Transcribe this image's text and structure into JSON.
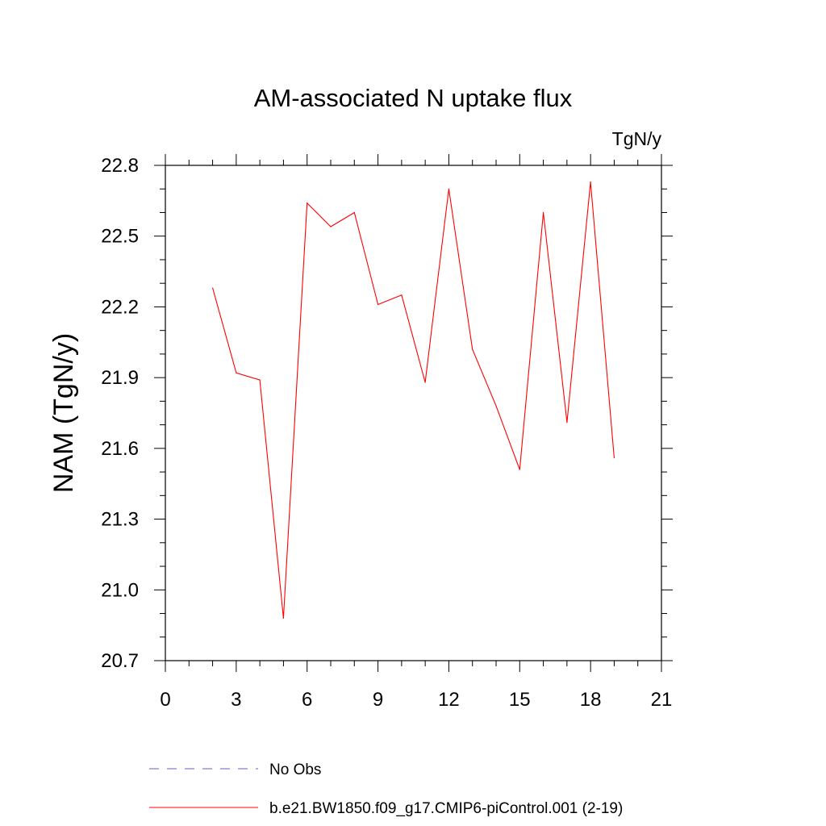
{
  "chart_data": {
    "type": "line",
    "title": "AM-associated N uptake flux",
    "units": "TgN/y",
    "xlabel": "",
    "ylabel": "NAM  (TgN/y)",
    "xlim": [
      0,
      21
    ],
    "ylim": [
      20.7,
      22.8
    ],
    "xticks": [
      "0",
      "3",
      "6",
      "9",
      "12",
      "15",
      "18",
      "21"
    ],
    "yticks": [
      "20.7",
      "21.0",
      "21.3",
      "21.6",
      "21.9",
      "22.2",
      "22.5",
      "22.8"
    ],
    "series": [
      {
        "name": "b.e21.BW1850.f09_g17.CMIP6-piControl.001 (2-19)",
        "color": "#ff0000",
        "x": [
          2,
          3,
          4,
          5,
          6,
          7,
          8,
          9,
          10,
          11,
          12,
          13,
          14,
          15,
          16,
          17,
          18,
          19
        ],
        "values": [
          22.28,
          21.92,
          21.89,
          20.88,
          22.64,
          22.54,
          22.6,
          22.21,
          22.25,
          21.88,
          22.7,
          22.02,
          21.78,
          21.51,
          22.6,
          21.71,
          22.73,
          21.56
        ]
      }
    ],
    "legend": [
      {
        "label": "No Obs",
        "color": "#6a5acd",
        "style": "dashed"
      },
      {
        "label": "b.e21.BW1850.f09_g17.CMIP6-piControl.001 (2-19)",
        "color": "#ff0000",
        "style": "solid"
      }
    ]
  }
}
